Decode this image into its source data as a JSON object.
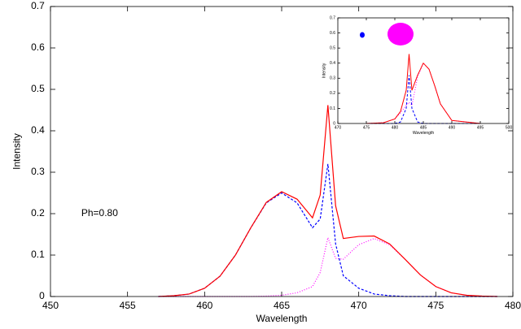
{
  "chart_data": [
    {
      "type": "line",
      "xlabel": "Wavelength",
      "ylabel": "Intensity",
      "annotation": "Ph=0.80",
      "x": [
        457,
        458,
        459,
        460,
        461,
        462,
        463,
        464,
        465,
        466,
        467,
        467.5,
        468,
        468.5,
        469,
        470,
        471,
        472,
        473,
        474,
        475,
        476,
        477,
        478,
        479
      ],
      "series": [
        {
          "color": "#ff0000",
          "style": "solid",
          "values": [
            0,
            0.002,
            0.006,
            0.02,
            0.049,
            0.1,
            0.166,
            0.227,
            0.253,
            0.235,
            0.19,
            0.245,
            0.462,
            0.219,
            0.14,
            0.145,
            0.146,
            0.127,
            0.09,
            0.052,
            0.024,
            0.009,
            0.003,
            0.001,
            0
          ]
        },
        {
          "color": "#0000ff",
          "style": "dashed",
          "values": [
            0,
            0.002,
            0.006,
            0.02,
            0.049,
            0.1,
            0.166,
            0.226,
            0.25,
            0.226,
            0.166,
            0.187,
            0.32,
            0.127,
            0.05,
            0.02,
            0.006,
            0.002,
            0,
            0,
            0,
            0,
            0,
            0,
            0
          ]
        },
        {
          "color": "#ff00ff",
          "style": "dotted",
          "values": [
            0,
            0,
            0,
            0,
            0,
            0,
            0,
            0.001,
            0.003,
            0.009,
            0.024,
            0.058,
            0.142,
            0.092,
            0.09,
            0.125,
            0.14,
            0.125,
            0.09,
            0.052,
            0.024,
            0.009,
            0.003,
            0.001,
            0
          ]
        }
      ],
      "xlim": [
        450,
        480
      ],
      "xticks": [
        450,
        455,
        460,
        465,
        470,
        475,
        480
      ],
      "ylim": [
        0,
        0.7
      ],
      "yticks": [
        0,
        0.1,
        0.2,
        0.3,
        0.4,
        0.5,
        0.6,
        0.7
      ]
    },
    {
      "type": "line",
      "xlabel": "Wavelength",
      "ylabel": "Intensity",
      "x": [
        475,
        478,
        480,
        481,
        482,
        482.5,
        483,
        484,
        485,
        486,
        487,
        488,
        490,
        495
      ],
      "series": [
        {
          "color": "#ff0000",
          "style": "solid",
          "values": [
            0,
            0.005,
            0.03,
            0.08,
            0.22,
            0.46,
            0.22,
            0.32,
            0.4,
            0.36,
            0.25,
            0.13,
            0.02,
            0
          ]
        },
        {
          "color": "#0000ff",
          "style": "dashed",
          "values": [
            0,
            0,
            0,
            0.01,
            0.1,
            0.32,
            0.1,
            0.01,
            0,
            0,
            0,
            0,
            0,
            0
          ]
        },
        {
          "color": "#ff00ff",
          "style": "dotted",
          "values": [
            0,
            0.005,
            0.03,
            0.07,
            0.12,
            0.14,
            0.12,
            0.31,
            0.4,
            0.36,
            0.25,
            0.13,
            0.02,
            0
          ]
        }
      ],
      "xlim": [
        470,
        500
      ],
      "xticks": [
        470,
        475,
        480,
        485,
        490,
        495,
        500
      ],
      "ylim": [
        0,
        0.7
      ],
      "yticks": [
        0,
        0.1,
        0.2,
        0.3,
        0.4,
        0.5,
        0.6,
        0.7
      ]
    }
  ]
}
